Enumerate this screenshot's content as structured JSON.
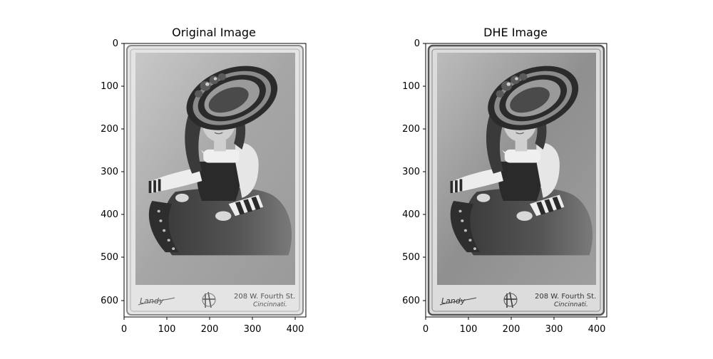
{
  "figure": {
    "panels": [
      {
        "title": "Original Image",
        "image_desc": "sepia cabinet card portrait",
        "x_ticks": [
          "0",
          "100",
          "200",
          "300",
          "400"
        ],
        "y_ticks": [
          "0",
          "100",
          "200",
          "300",
          "400",
          "500",
          "600"
        ],
        "card_text": {
          "signature": "Landy",
          "address_line1": "208 W. Fourth St.",
          "address_line2": "Cincinnati."
        },
        "tone": "#8c8c8c"
      },
      {
        "title": "DHE Image",
        "image_desc": "contrast enhanced cabinet card portrait",
        "x_ticks": [
          "0",
          "100",
          "200",
          "300",
          "400"
        ],
        "y_ticks": [
          "0",
          "100",
          "200",
          "300",
          "400",
          "500",
          "600"
        ],
        "card_text": {
          "signature": "Landy",
          "address_line1": "208 W. Fourth St.",
          "address_line2": "Cincinnati."
        },
        "tone": "#7a7a7a"
      }
    ]
  }
}
